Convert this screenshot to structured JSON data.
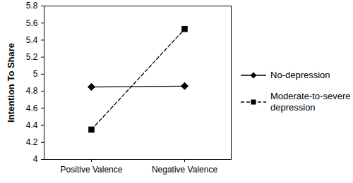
{
  "chart_data": {
    "type": "line",
    "y_label": "Intention To Share",
    "categories": [
      "Positive Valence",
      "Negative Valence"
    ],
    "series": [
      {
        "name": "No-depression",
        "color": "#000000",
        "marker": "diamond",
        "line_style": "solid",
        "values": [
          4.85,
          4.86
        ]
      },
      {
        "name": "Moderate-to-severe depression",
        "color": "#000000",
        "marker": "square",
        "line_style": "dashed",
        "values": [
          4.35,
          5.53
        ]
      }
    ],
    "ylim": [
      4,
      5.8
    ],
    "yticks": [
      4,
      4.2,
      4.4,
      4.6,
      4.8,
      5,
      5.2,
      5.4,
      5.6,
      5.8
    ],
    "grid": false,
    "legend": "right"
  }
}
